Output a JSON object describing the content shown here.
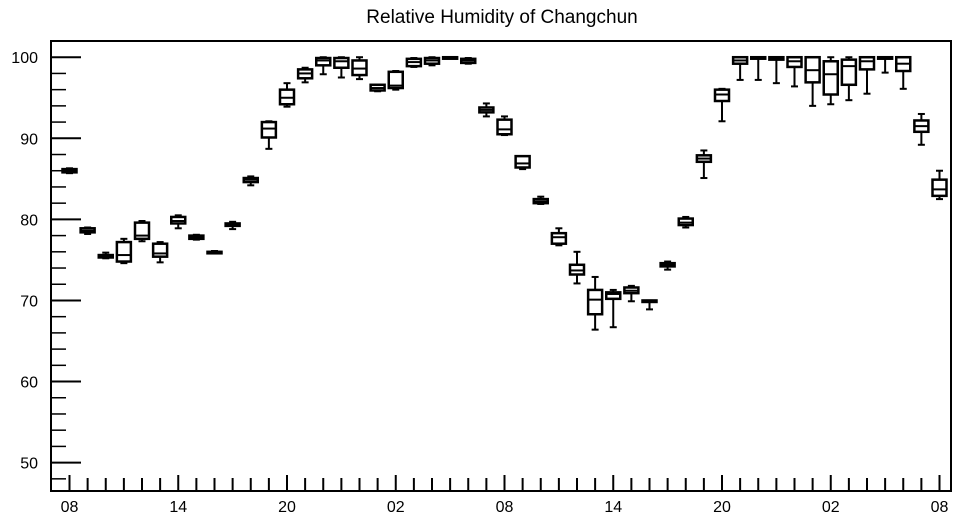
{
  "chart_data": {
    "type": "box",
    "title": "Relative Humidity of Changchun",
    "xlabel": "",
    "ylabel": "",
    "ylim": [
      46.5,
      102
    ],
    "y_ticks": [
      50,
      60,
      70,
      80,
      90,
      100
    ],
    "y_tick_labels": [
      "50",
      "60",
      "70",
      "80",
      "90",
      "100"
    ],
    "y_minor_step": 2,
    "hours": [
      8,
      9,
      10,
      11,
      12,
      13,
      14,
      15,
      16,
      17,
      18,
      19,
      20,
      21,
      22,
      23,
      0,
      1,
      2,
      3,
      4,
      5,
      6,
      7,
      8,
      9,
      10,
      11,
      12,
      13,
      14,
      15,
      16,
      17,
      18,
      19,
      20,
      21,
      22,
      23,
      0,
      1,
      2,
      3,
      4,
      5,
      6,
      7,
      8
    ],
    "x_tick_labels": [
      {
        "hour_index": 0,
        "label": "08"
      },
      {
        "hour_index": 6,
        "label": "14"
      },
      {
        "hour_index": 12,
        "label": "20"
      },
      {
        "hour_index": 18,
        "label": "02"
      },
      {
        "hour_index": 24,
        "label": "08"
      },
      {
        "hour_index": 30,
        "label": "14"
      },
      {
        "hour_index": 36,
        "label": "20"
      },
      {
        "hour_index": 42,
        "label": "02"
      },
      {
        "hour_index": 48,
        "label": "08"
      }
    ],
    "grid": false,
    "boxes": [
      {
        "hour_index": 0,
        "low": 85.7,
        "q1": 85.8,
        "median": 86.0,
        "q3": 86.2,
        "high": 86.3
      },
      {
        "hour_index": 1,
        "low": 78.2,
        "q1": 78.4,
        "median": 78.6,
        "q3": 78.9,
        "high": 79.0
      },
      {
        "hour_index": 2,
        "low": 75.2,
        "q1": 75.3,
        "median": 75.5,
        "q3": 75.6,
        "high": 75.9
      },
      {
        "hour_index": 3,
        "low": 74.6,
        "q1": 74.8,
        "median": 75.6,
        "q3": 77.2,
        "high": 77.6
      },
      {
        "hour_index": 4,
        "low": 77.3,
        "q1": 77.6,
        "median": 78.0,
        "q3": 79.6,
        "high": 79.8
      },
      {
        "hour_index": 5,
        "low": 74.7,
        "q1": 75.4,
        "median": 75.8,
        "q3": 77.0,
        "high": 77.2
      },
      {
        "hour_index": 6,
        "low": 78.9,
        "q1": 79.5,
        "median": 79.8,
        "q3": 80.3,
        "high": 80.5
      },
      {
        "hour_index": 7,
        "low": 77.5,
        "q1": 77.6,
        "median": 77.8,
        "q3": 78.0,
        "high": 78.1
      },
      {
        "hour_index": 8,
        "low": 75.9,
        "q1": 75.9,
        "median": 76.0,
        "q3": 76.0,
        "high": 76.1
      },
      {
        "hour_index": 9,
        "low": 78.8,
        "q1": 79.2,
        "median": 79.3,
        "q3": 79.5,
        "high": 79.7
      },
      {
        "hour_index": 10,
        "low": 84.2,
        "q1": 84.6,
        "median": 84.9,
        "q3": 85.1,
        "high": 85.3
      },
      {
        "hour_index": 11,
        "low": 88.7,
        "q1": 90.1,
        "median": 91.2,
        "q3": 92.0,
        "high": 92.1
      },
      {
        "hour_index": 12,
        "low": 93.9,
        "q1": 94.2,
        "median": 95.0,
        "q3": 96.0,
        "high": 96.8
      },
      {
        "hour_index": 13,
        "low": 96.9,
        "q1": 97.4,
        "median": 98.0,
        "q3": 98.5,
        "high": 98.7
      },
      {
        "hour_index": 14,
        "low": 97.9,
        "q1": 99.0,
        "median": 99.6,
        "q3": 99.9,
        "high": 100.0
      },
      {
        "hour_index": 15,
        "low": 97.5,
        "q1": 98.7,
        "median": 99.5,
        "q3": 99.9,
        "high": 100.0
      },
      {
        "hour_index": 16,
        "low": 97.3,
        "q1": 97.8,
        "median": 98.6,
        "q3": 99.6,
        "high": 100.0
      },
      {
        "hour_index": 17,
        "low": 95.8,
        "q1": 95.9,
        "median": 96.2,
        "q3": 96.6,
        "high": 96.6
      },
      {
        "hour_index": 18,
        "low": 96.0,
        "q1": 96.2,
        "median": 96.5,
        "q3": 98.2,
        "high": 98.3
      },
      {
        "hour_index": 19,
        "low": 98.8,
        "q1": 98.9,
        "median": 99.4,
        "q3": 99.8,
        "high": 99.9
      },
      {
        "hour_index": 20,
        "low": 99.0,
        "q1": 99.2,
        "median": 99.6,
        "q3": 99.9,
        "high": 100.0
      },
      {
        "hour_index": 21,
        "low": 99.9,
        "q1": 100.0,
        "median": 100.0,
        "q3": 100.0,
        "high": 100.0
      },
      {
        "hour_index": 22,
        "low": 99.2,
        "q1": 99.3,
        "median": 99.6,
        "q3": 99.8,
        "high": 99.9
      },
      {
        "hour_index": 23,
        "low": 92.7,
        "q1": 93.2,
        "median": 93.5,
        "q3": 93.8,
        "high": 94.3
      },
      {
        "hour_index": 24,
        "low": 90.4,
        "q1": 90.5,
        "median": 91.1,
        "q3": 92.3,
        "high": 92.7
      },
      {
        "hour_index": 25,
        "low": 86.2,
        "q1": 86.4,
        "median": 86.9,
        "q3": 87.8,
        "high": 87.8
      },
      {
        "hour_index": 26,
        "low": 81.9,
        "q1": 82.0,
        "median": 82.2,
        "q3": 82.5,
        "high": 82.8
      },
      {
        "hour_index": 27,
        "low": 76.8,
        "q1": 77.0,
        "median": 77.8,
        "q3": 78.3,
        "high": 78.9
      },
      {
        "hour_index": 28,
        "low": 72.1,
        "q1": 73.2,
        "median": 73.7,
        "q3": 74.4,
        "high": 76.0
      },
      {
        "hour_index": 29,
        "low": 66.4,
        "q1": 68.3,
        "median": 70.1,
        "q3": 71.3,
        "high": 72.9
      },
      {
        "hour_index": 30,
        "low": 66.7,
        "q1": 70.2,
        "median": 70.8,
        "q3": 71.0,
        "high": 71.3
      },
      {
        "hour_index": 31,
        "low": 69.9,
        "q1": 70.9,
        "median": 71.2,
        "q3": 71.6,
        "high": 71.8
      },
      {
        "hour_index": 32,
        "low": 68.9,
        "q1": 69.9,
        "median": 70.0,
        "q3": 70.0,
        "high": 70.0
      },
      {
        "hour_index": 33,
        "low": 73.8,
        "q1": 74.2,
        "median": 74.4,
        "q3": 74.6,
        "high": 74.8
      },
      {
        "hour_index": 34,
        "low": 79.0,
        "q1": 79.3,
        "median": 79.6,
        "q3": 80.1,
        "high": 80.3
      },
      {
        "hour_index": 35,
        "low": 85.1,
        "q1": 87.1,
        "median": 87.5,
        "q3": 87.9,
        "high": 88.5
      },
      {
        "hour_index": 36,
        "low": 92.1,
        "q1": 94.6,
        "median": 95.4,
        "q3": 96.0,
        "high": 96.1
      },
      {
        "hour_index": 37,
        "low": 97.2,
        "q1": 99.2,
        "median": 99.6,
        "q3": 100.0,
        "high": 100.0
      },
      {
        "hour_index": 38,
        "low": 97.2,
        "q1": 99.9,
        "median": 100.0,
        "q3": 100.0,
        "high": 100.0
      },
      {
        "hour_index": 39,
        "low": 96.8,
        "q1": 99.7,
        "median": 99.8,
        "q3": 100.0,
        "high": 100.0
      },
      {
        "hour_index": 40,
        "low": 96.4,
        "q1": 98.8,
        "median": 99.5,
        "q3": 100.0,
        "high": 100.0
      },
      {
        "hour_index": 41,
        "low": 94.0,
        "q1": 96.9,
        "median": 98.4,
        "q3": 100.0,
        "high": 100.0
      },
      {
        "hour_index": 42,
        "low": 94.2,
        "q1": 95.4,
        "median": 97.9,
        "q3": 99.5,
        "high": 100.0
      },
      {
        "hour_index": 43,
        "low": 94.7,
        "q1": 96.6,
        "median": 98.9,
        "q3": 99.7,
        "high": 100.0
      },
      {
        "hour_index": 44,
        "low": 95.5,
        "q1": 98.5,
        "median": 99.5,
        "q3": 100.0,
        "high": 100.0
      },
      {
        "hour_index": 45,
        "low": 98.1,
        "q1": 99.9,
        "median": 100.0,
        "q3": 100.0,
        "high": 100.0
      },
      {
        "hour_index": 46,
        "low": 96.1,
        "q1": 98.3,
        "median": 99.2,
        "q3": 100.0,
        "high": 100.0
      },
      {
        "hour_index": 47,
        "low": 89.2,
        "q1": 90.8,
        "median": 91.5,
        "q3": 92.2,
        "high": 93.0
      },
      {
        "hour_index": 48,
        "low": 82.5,
        "q1": 82.9,
        "median": 83.7,
        "q3": 84.9,
        "high": 86.0
      }
    ],
    "color": "#000000"
  }
}
